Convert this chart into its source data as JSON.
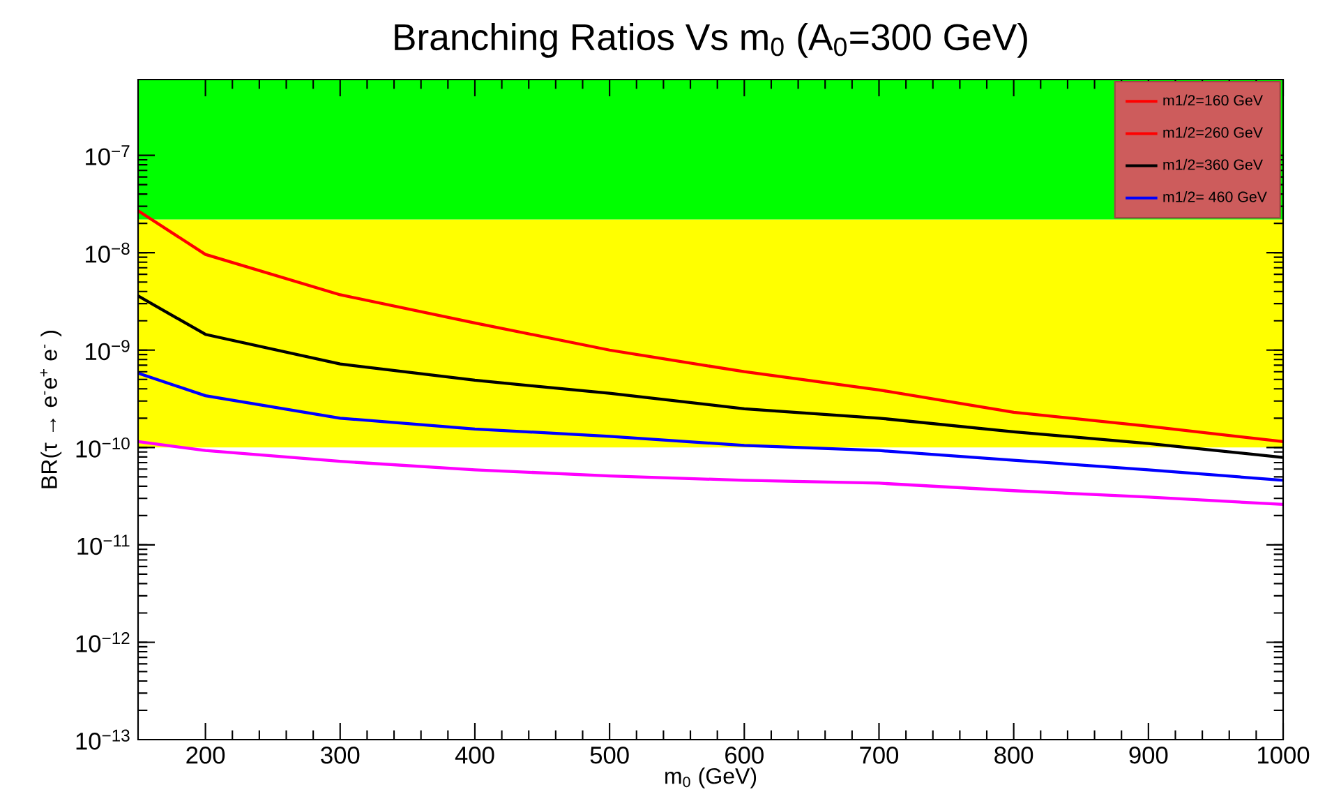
{
  "chart_data": {
    "type": "line",
    "title": "Branching Ratios Vs m$_{0}$ (A$_{0}$=300 GeV)",
    "xlabel": "m$_{0}$ (GeV)",
    "ylabel": "BR(τ → e$^{-}$e$^{+}$ e$^{-}$ )",
    "x": [
      150,
      200,
      300,
      400,
      500,
      600,
      700,
      800,
      900,
      1000
    ],
    "series": [
      {
        "name": "m1/2=160 GeV",
        "color": "#ff0000",
        "values": [
          2.7e-08,
          9.6e-09,
          3.7e-09,
          1.9e-09,
          1e-09,
          6e-10,
          3.9e-10,
          2.3e-10,
          1.65e-10,
          1.15e-10
        ]
      },
      {
        "name": "m1/2=260 GeV",
        "color": "#ff0000",
        "values": [
          null,
          null,
          null,
          null,
          null,
          null,
          null,
          null,
          null,
          null
        ]
      },
      {
        "name": "m1/2=360 GeV",
        "color": "#000000",
        "values": [
          3.6e-09,
          1.45e-09,
          7.2e-10,
          4.9e-10,
          3.6e-10,
          2.5e-10,
          2e-10,
          1.45e-10,
          1.1e-10,
          7.9e-11
        ]
      },
      {
        "name": "m1/2= 460 GeV",
        "color": "#0000ff",
        "values": [
          5.8e-10,
          3.4e-10,
          2e-10,
          1.55e-10,
          1.3e-10,
          1.05e-10,
          9.3e-11,
          7.4e-11,
          5.9e-11,
          4.6e-11
        ]
      },
      {
        "color": "#ff00ff",
        "values": [
          1.15e-10,
          9.3e-11,
          7.2e-11,
          5.9e-11,
          5.1e-11,
          4.6e-11,
          4.3e-11,
          3.6e-11,
          3.1e-11,
          2.6e-11
        ]
      }
    ],
    "xlim": [
      150,
      1000
    ],
    "ylim": [
      1e-13,
      6e-07
    ],
    "log": "y",
    "xticks": [
      200,
      300,
      400,
      500,
      600,
      700,
      800,
      900,
      1000
    ],
    "yticks": [
      {
        "value": 1e-13,
        "label": "10$^{−13}$"
      },
      {
        "value": 1e-12,
        "label": "10$^{−12}$"
      },
      {
        "value": 1e-11,
        "label": "10$^{−11}$"
      },
      {
        "value": 1e-10,
        "label": "10$^{−10}$"
      },
      {
        "value": 1e-09,
        "label": "10$^{−9}$"
      },
      {
        "value": 1e-08,
        "label": "10$^{−8}$"
      },
      {
        "value": 1e-07,
        "label": "10$^{−7}$"
      }
    ],
    "bands": [
      {
        "axis": "y",
        "from": 1e-10,
        "to": 2.2e-08,
        "color": "#ffff00"
      },
      {
        "axis": "y",
        "from": 2.2e-08,
        "to": 6e-07,
        "color": "#00ff00"
      }
    ],
    "grid": false,
    "legend": "top right",
    "marker": "none",
    "line_style": "solid"
  }
}
